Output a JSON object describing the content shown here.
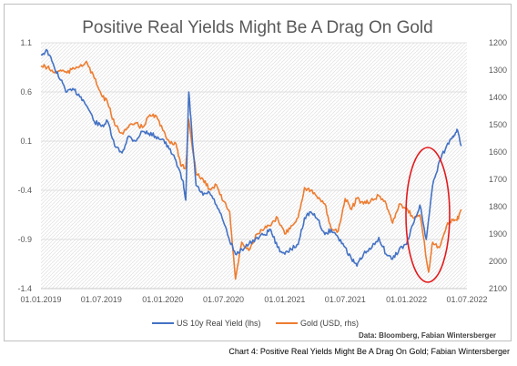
{
  "caption": "Chart 4: Positive Real Yields Might Be A Drag On Gold; Fabian Wintersberger",
  "chart_data": {
    "type": "line",
    "title": "Positive Real Yields Might Be A Drag On Gold",
    "source": "Data: Bloomberg, Fabian Wintersberger",
    "x_ticks": [
      "01.01.2019",
      "01.07.2019",
      "01.01.2020",
      "01.07.2020",
      "01.01.2021",
      "01.07.2021",
      "01.01.2022",
      "01.07.2022"
    ],
    "x_range": [
      "2019-01-01",
      "2022-07-01"
    ],
    "y_left": {
      "range": [
        -1.4,
        1.1
      ],
      "ticks": [
        "1.1",
        "0.6",
        "0.1",
        "-0.4",
        "-0.9",
        "-1.4"
      ]
    },
    "y_right": {
      "range": [
        1200,
        2100
      ],
      "inverted": true,
      "ticks": [
        "1200",
        "1300",
        "1400",
        "1500",
        "1600",
        "1700",
        "1800",
        "1900",
        "2000",
        "2100"
      ]
    },
    "grid": "horizontal",
    "legend_position": "bottom",
    "colors": {
      "real_yield": "#4472c4",
      "gold": "#ed7d31",
      "highlight": "#e31a1c",
      "grid": "#d9d9d9"
    },
    "series": [
      {
        "name": "US 10y Real Yield (lhs)",
        "axis": "left",
        "points": [
          [
            "2019-01-01",
            0.98
          ],
          [
            "2019-01-20",
            1.02
          ],
          [
            "2019-02-10",
            0.85
          ],
          [
            "2019-03-01",
            0.72
          ],
          [
            "2019-03-20",
            0.6
          ],
          [
            "2019-04-10",
            0.62
          ],
          [
            "2019-05-01",
            0.55
          ],
          [
            "2019-05-20",
            0.45
          ],
          [
            "2019-06-10",
            0.3
          ],
          [
            "2019-07-01",
            0.25
          ],
          [
            "2019-07-20",
            0.3
          ],
          [
            "2019-08-10",
            0.05
          ],
          [
            "2019-09-01",
            -0.02
          ],
          [
            "2019-09-20",
            0.15
          ],
          [
            "2019-10-10",
            0.1
          ],
          [
            "2019-11-01",
            0.2
          ],
          [
            "2019-11-20",
            0.18
          ],
          [
            "2019-12-10",
            0.15
          ],
          [
            "2020-01-01",
            0.12
          ],
          [
            "2020-01-20",
            0.02
          ],
          [
            "2020-02-10",
            -0.1
          ],
          [
            "2020-03-01",
            -0.3
          ],
          [
            "2020-03-10",
            -0.5
          ],
          [
            "2020-03-19",
            0.6
          ],
          [
            "2020-03-28",
            0.2
          ],
          [
            "2020-04-10",
            -0.35
          ],
          [
            "2020-05-01",
            -0.45
          ],
          [
            "2020-05-20",
            -0.42
          ],
          [
            "2020-06-10",
            -0.55
          ],
          [
            "2020-07-01",
            -0.72
          ],
          [
            "2020-07-20",
            -0.92
          ],
          [
            "2020-08-06",
            -1.05
          ],
          [
            "2020-08-25",
            -1.0
          ],
          [
            "2020-09-15",
            -0.95
          ],
          [
            "2020-10-10",
            -0.88
          ],
          [
            "2020-11-01",
            -0.85
          ],
          [
            "2020-11-20",
            -0.8
          ],
          [
            "2020-12-10",
            -0.98
          ],
          [
            "2021-01-01",
            -1.05
          ],
          [
            "2021-01-20",
            -1.0
          ],
          [
            "2021-02-10",
            -0.95
          ],
          [
            "2021-03-01",
            -0.68
          ],
          [
            "2021-03-20",
            -0.62
          ],
          [
            "2021-04-10",
            -0.7
          ],
          [
            "2021-05-01",
            -0.85
          ],
          [
            "2021-05-20",
            -0.8
          ],
          [
            "2021-06-10",
            -0.88
          ],
          [
            "2021-07-01",
            -0.98
          ],
          [
            "2021-07-20",
            -1.1
          ],
          [
            "2021-08-05",
            -1.17
          ],
          [
            "2021-08-25",
            -1.05
          ],
          [
            "2021-09-15",
            -1.0
          ],
          [
            "2021-10-10",
            -0.88
          ],
          [
            "2021-11-01",
            -1.05
          ],
          [
            "2021-11-20",
            -1.1
          ],
          [
            "2021-12-10",
            -1.0
          ],
          [
            "2022-01-01",
            -0.95
          ],
          [
            "2022-01-20",
            -0.75
          ],
          [
            "2022-02-10",
            -0.55
          ],
          [
            "2022-03-01",
            -0.9
          ],
          [
            "2022-03-20",
            -0.35
          ],
          [
            "2022-04-10",
            -0.1
          ],
          [
            "2022-05-01",
            0.05
          ],
          [
            "2022-05-20",
            0.15
          ],
          [
            "2022-06-01",
            0.22
          ],
          [
            "2022-06-14",
            0.05
          ]
        ]
      },
      {
        "name": "Gold (USD, rhs)",
        "axis": "right",
        "points": [
          [
            "2019-01-01",
            1285
          ],
          [
            "2019-01-20",
            1290
          ],
          [
            "2019-02-10",
            1310
          ],
          [
            "2019-03-01",
            1300
          ],
          [
            "2019-03-20",
            1310
          ],
          [
            "2019-04-10",
            1295
          ],
          [
            "2019-05-01",
            1280
          ],
          [
            "2019-05-20",
            1275
          ],
          [
            "2019-06-10",
            1330
          ],
          [
            "2019-07-01",
            1390
          ],
          [
            "2019-07-20",
            1420
          ],
          [
            "2019-08-10",
            1500
          ],
          [
            "2019-09-01",
            1530
          ],
          [
            "2019-09-20",
            1510
          ],
          [
            "2019-10-10",
            1495
          ],
          [
            "2019-11-01",
            1510
          ],
          [
            "2019-11-20",
            1470
          ],
          [
            "2019-12-10",
            1465
          ],
          [
            "2020-01-01",
            1520
          ],
          [
            "2020-01-20",
            1560
          ],
          [
            "2020-02-10",
            1570
          ],
          [
            "2020-02-24",
            1650
          ],
          [
            "2020-03-10",
            1660
          ],
          [
            "2020-03-19",
            1480
          ],
          [
            "2020-04-10",
            1680
          ],
          [
            "2020-05-01",
            1700
          ],
          [
            "2020-05-20",
            1735
          ],
          [
            "2020-06-10",
            1720
          ],
          [
            "2020-07-01",
            1780
          ],
          [
            "2020-07-20",
            1820
          ],
          [
            "2020-08-06",
            2065
          ],
          [
            "2020-08-25",
            1930
          ],
          [
            "2020-09-15",
            1960
          ],
          [
            "2020-10-10",
            1900
          ],
          [
            "2020-11-01",
            1880
          ],
          [
            "2020-11-20",
            1870
          ],
          [
            "2020-12-10",
            1840
          ],
          [
            "2021-01-01",
            1900
          ],
          [
            "2021-01-20",
            1870
          ],
          [
            "2021-02-10",
            1840
          ],
          [
            "2021-03-01",
            1730
          ],
          [
            "2021-03-20",
            1740
          ],
          [
            "2021-04-10",
            1770
          ],
          [
            "2021-05-01",
            1790
          ],
          [
            "2021-05-20",
            1880
          ],
          [
            "2021-06-10",
            1890
          ],
          [
            "2021-07-01",
            1770
          ],
          [
            "2021-07-20",
            1810
          ],
          [
            "2021-08-05",
            1770
          ],
          [
            "2021-08-25",
            1790
          ],
          [
            "2021-09-15",
            1780
          ],
          [
            "2021-10-10",
            1760
          ],
          [
            "2021-11-01",
            1790
          ],
          [
            "2021-11-20",
            1860
          ],
          [
            "2021-12-10",
            1790
          ],
          [
            "2022-01-01",
            1805
          ],
          [
            "2022-01-20",
            1840
          ],
          [
            "2022-02-10",
            1830
          ],
          [
            "2022-03-08",
            2040
          ],
          [
            "2022-03-20",
            1930
          ],
          [
            "2022-04-10",
            1950
          ],
          [
            "2022-05-01",
            1870
          ],
          [
            "2022-05-20",
            1850
          ],
          [
            "2022-06-01",
            1850
          ],
          [
            "2022-06-14",
            1810
          ]
        ]
      }
    ]
  }
}
